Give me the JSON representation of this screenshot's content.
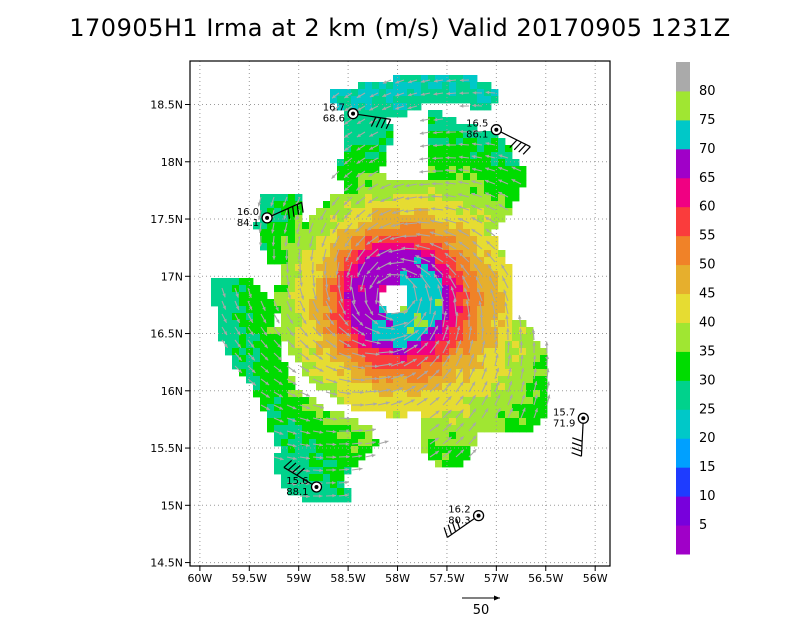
{
  "title": "170905H1 Irma at 2 km (m/s) Valid 20170905 1231Z",
  "chart_data": {
    "type": "heatmap",
    "title": "170905H1 Irma at 2 km (m/s) Valid 20170905 1231Z",
    "x_ticks": [
      "60W",
      "59.5W",
      "59W",
      "58.5W",
      "58W",
      "57.5W",
      "57W",
      "56.5W",
      "56W"
    ],
    "y_ticks": [
      "18.5N",
      "18N",
      "17.5N",
      "17N",
      "16.5N",
      "16N",
      "15.5N",
      "15N",
      "14.5N"
    ],
    "xlim": [
      -60.1,
      -55.85
    ],
    "ylim": [
      14.47,
      18.88
    ],
    "grid": true,
    "colorbar": {
      "levels": [
        0,
        5,
        10,
        15,
        20,
        25,
        30,
        35,
        40,
        45,
        50,
        55,
        60,
        65,
        70,
        75,
        80,
        85
      ],
      "labels": [
        "5",
        "10",
        "15",
        "20",
        "25",
        "30",
        "35",
        "40",
        "45",
        "50",
        "55",
        "60",
        "65",
        "70",
        "75",
        "80"
      ],
      "colors": [
        "#a000c8",
        "#7800dc",
        "#1e3cff",
        "#00a0ff",
        "#00c8c8",
        "#00d28c",
        "#00dc00",
        "#a0e632",
        "#e6dc32",
        "#e6af2d",
        "#f08228",
        "#fa3c3c",
        "#f00082",
        "#a000c8",
        "#00c8c8",
        "#a0e632",
        "#aaaaaa"
      ]
    },
    "center": {
      "lon": -58.03,
      "lat": 16.82
    },
    "wind_vector_reference": "50",
    "observations": [
      {
        "lat_label": "16.7",
        "value_label": "68.6",
        "lon": -58.45,
        "lat": 18.42
      },
      {
        "lat_label": "16.5",
        "value_label": "86.1",
        "lon": -57.0,
        "lat": 18.28
      },
      {
        "lat_label": "16.0",
        "value_label": "84.1",
        "lon": -59.32,
        "lat": 17.51
      },
      {
        "lat_label": "15.7",
        "value_label": "71.9",
        "lon": -56.12,
        "lat": 15.76
      },
      {
        "lat_label": "15.6",
        "value_label": "88.1",
        "lon": -58.82,
        "lat": 15.16
      },
      {
        "lat_label": "16.2",
        "value_label": "80.3",
        "lon": -57.18,
        "lat": 14.91
      }
    ]
  }
}
